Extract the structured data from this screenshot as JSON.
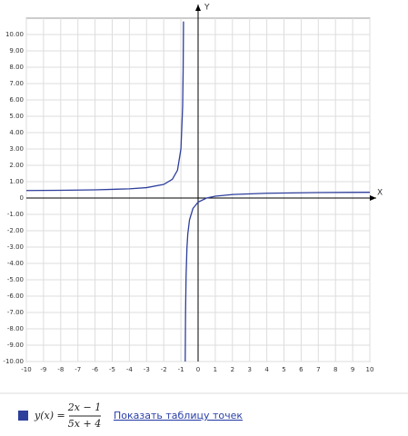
{
  "chart_data": {
    "type": "line",
    "x_label": "X",
    "y_label": "Y",
    "xlim": [
      -10,
      10
    ],
    "ylim": [
      -10,
      10
    ],
    "xticks": [
      -10,
      -9,
      -8,
      -7,
      -6,
      -5,
      -4,
      -3,
      -2,
      -1,
      0,
      1,
      2,
      3,
      4,
      5,
      6,
      7,
      8,
      9,
      10
    ],
    "yticks": [
      {
        "value": -10,
        "label": "-10.00"
      },
      {
        "value": -9,
        "label": "-9.00"
      },
      {
        "value": -8,
        "label": "-8.00"
      },
      {
        "value": -7,
        "label": "-7.00"
      },
      {
        "value": -6,
        "label": "-6.00"
      },
      {
        "value": -5,
        "label": "-5.00"
      },
      {
        "value": -4,
        "label": "-4.00"
      },
      {
        "value": -3,
        "label": "-3.00"
      },
      {
        "value": -2,
        "label": "-2.00"
      },
      {
        "value": -1,
        "label": "-1.00"
      },
      0,
      {
        "value": 1,
        "label": "1.00"
      },
      {
        "value": 2,
        "label": "2.00"
      },
      {
        "value": 3,
        "label": "3.00"
      },
      {
        "value": 4,
        "label": "4.00"
      },
      {
        "value": 5,
        "label": "5.00"
      },
      {
        "value": 6,
        "label": "6.00"
      },
      {
        "value": 7,
        "label": "7.00"
      },
      {
        "value": 8,
        "label": "8.00"
      },
      {
        "value": 9,
        "label": "9.00"
      },
      {
        "value": 10,
        "label": "10.00"
      }
    ],
    "grid": true,
    "x": [
      -10,
      -8,
      -6,
      -4,
      -3,
      -2,
      -1.5,
      -1.2,
      -1,
      -0.9,
      -0.87,
      -0.85,
      -0.8,
      -0.75,
      -0.73,
      -0.7,
      -0.65,
      -0.6,
      -0.5,
      -0.3,
      0,
      0.5,
      1,
      2,
      4,
      7,
      10
    ],
    "series": [
      {
        "name": "y(x)",
        "color": "#2e3f9c",
        "values": [
          0.4565,
          0.4722,
          0.5,
          0.5625,
          0.6364,
          0.8333,
          1.1429,
          1.7,
          3,
          5.6,
          7.829,
          10.8,
          null,
          -10,
          -7.029,
          -4.8,
          -3.0667,
          -2.2,
          -1.3333,
          -0.64,
          -0.25,
          0,
          0.1111,
          0.2143,
          0.2917,
          0.3333,
          0.3519
        ]
      }
    ],
    "formula": {
      "lhs": "y(x) =",
      "numerator": "2x − 1",
      "denominator": "5x + 4"
    },
    "link": "Показать таблицу точек"
  }
}
